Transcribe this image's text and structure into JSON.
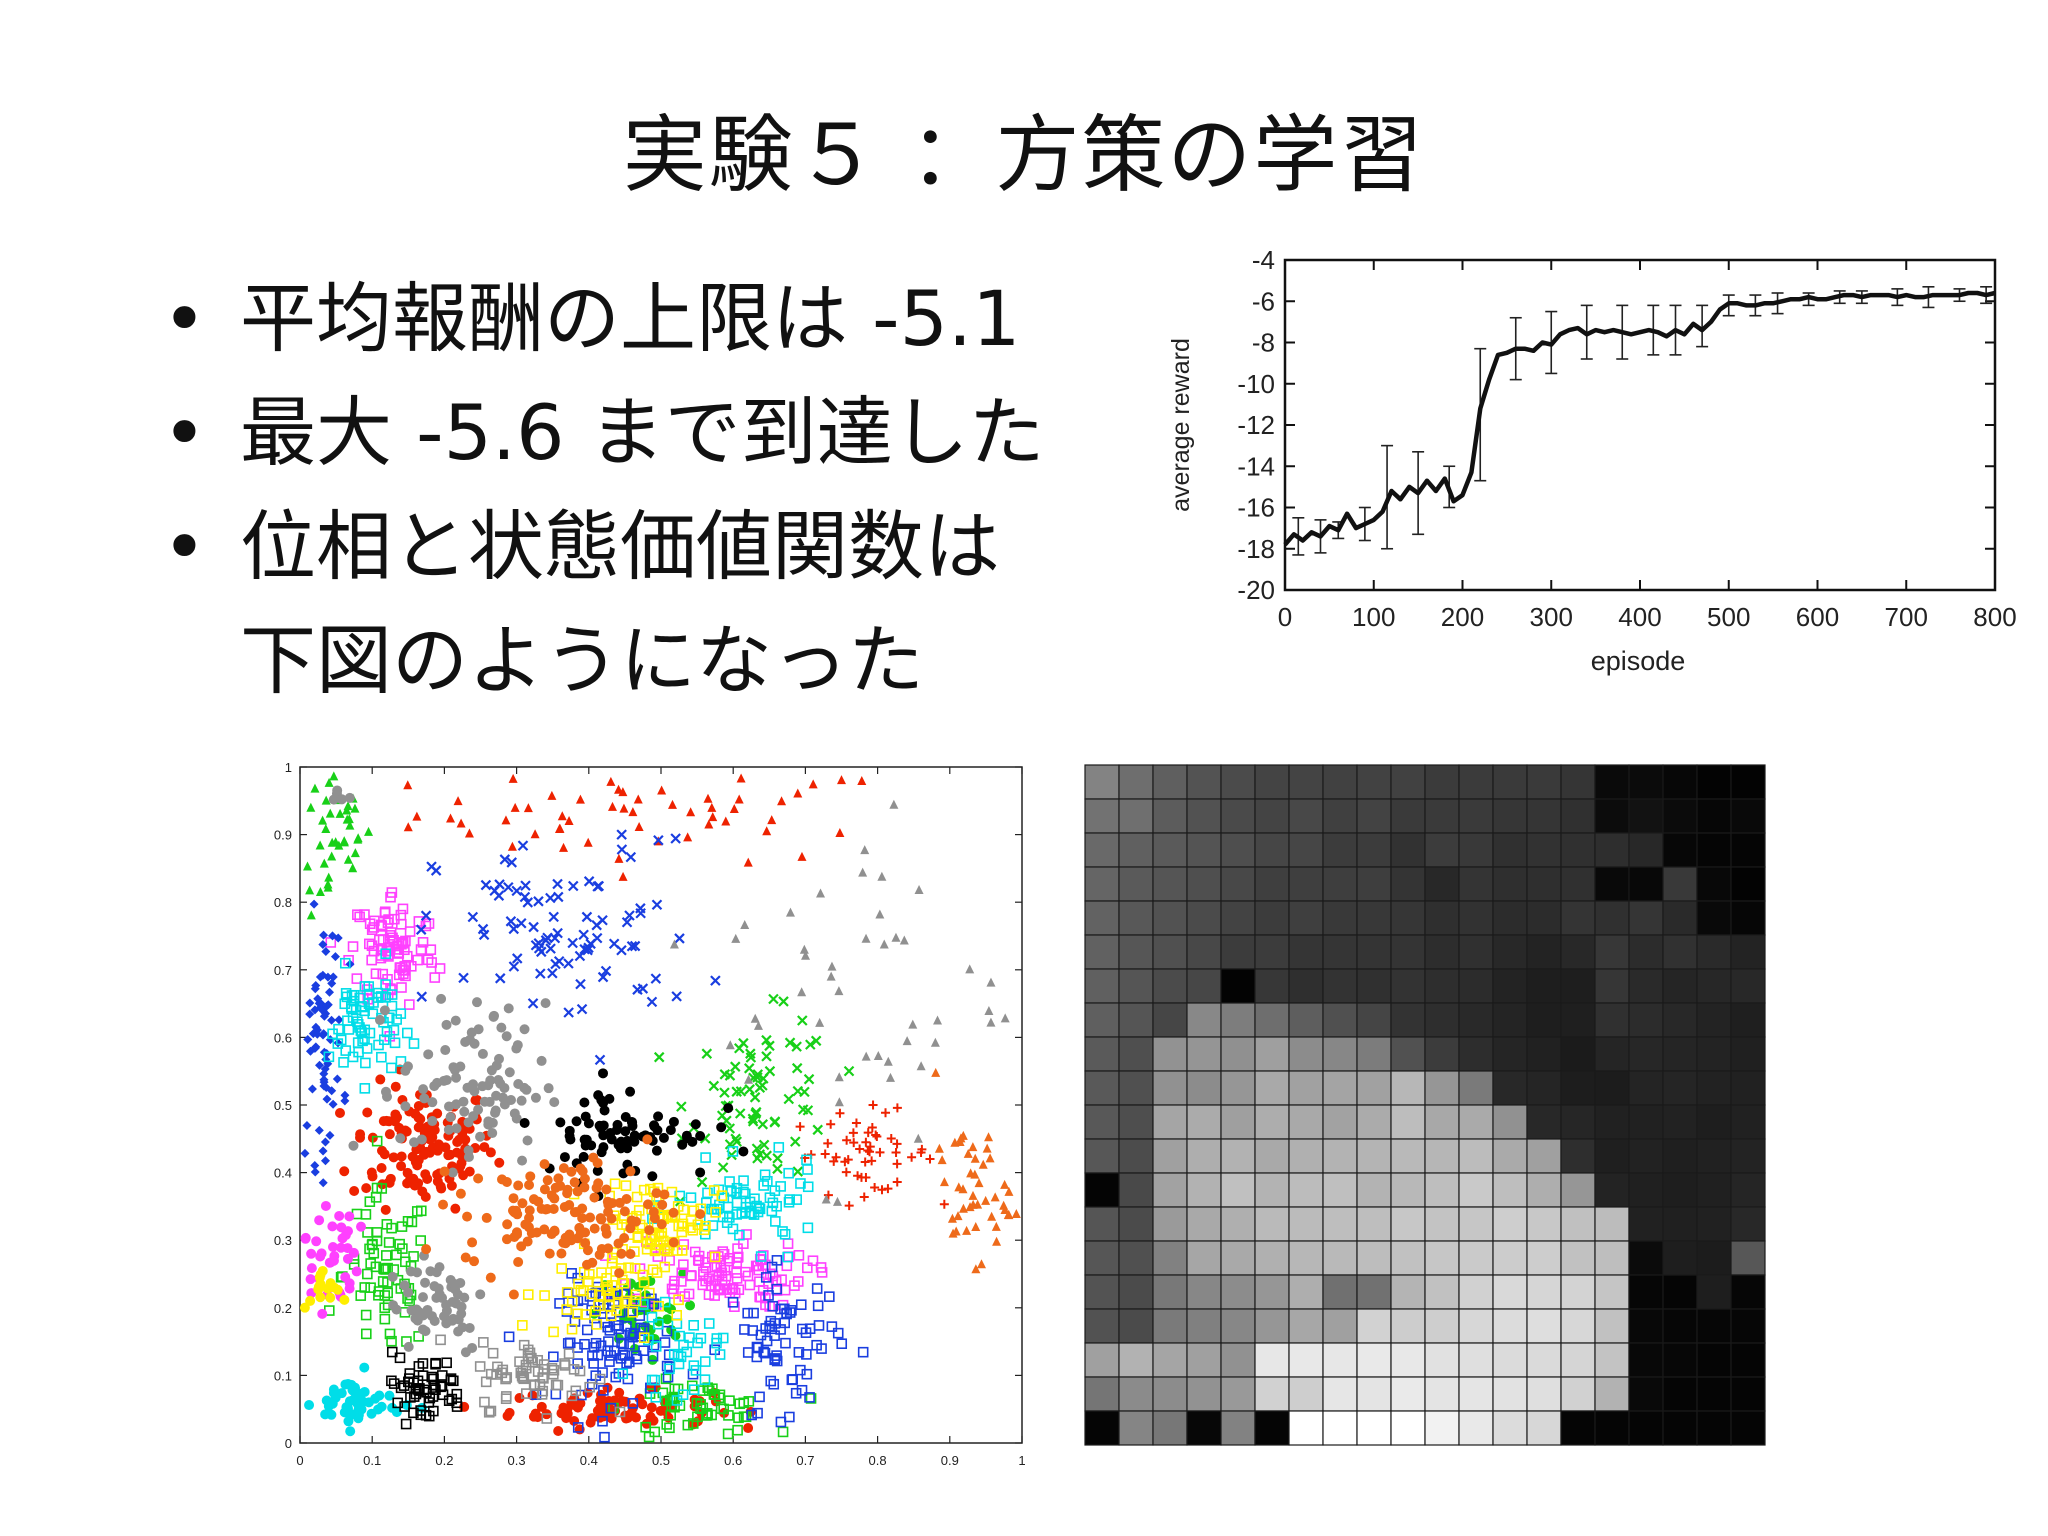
{
  "slide": {
    "title": "実験５ ：方策の学習",
    "bullets": [
      {
        "text": "平均報酬の上限は -5.1"
      },
      {
        "text": "最大 -5.6 まで到達した"
      },
      {
        "text": "位相と状態価値関数は",
        "cont": "下図のようになった"
      }
    ],
    "bullet_char": "•"
  },
  "chart_data": [
    {
      "type": "line",
      "xlabel": "episode",
      "ylabel": "average reward",
      "xlim": [
        0,
        800
      ],
      "ylim": [
        -20,
        -4
      ],
      "xticks": [
        "0",
        "100",
        "200",
        "300",
        "400",
        "500",
        "600",
        "700",
        "800"
      ],
      "yticks": [
        "-4",
        "-6",
        "-8",
        "-10",
        "-12",
        "-14",
        "-16",
        "-18",
        "-20"
      ],
      "line_color": "#111111",
      "series": [
        {
          "x": [
            0,
            10,
            20,
            30,
            40,
            50,
            60,
            70,
            80,
            90,
            100,
            110,
            120,
            130,
            140,
            150,
            160,
            170,
            180,
            190,
            200,
            210,
            220,
            230,
            240,
            250,
            260,
            270,
            280,
            290,
            300,
            310,
            320,
            330,
            340,
            350,
            360,
            370,
            380,
            390,
            400,
            410,
            420,
            430,
            440,
            450,
            460,
            470,
            480,
            490,
            500,
            510,
            520,
            530,
            540,
            550,
            560,
            570,
            580,
            590,
            600,
            610,
            620,
            630,
            640,
            650,
            660,
            670,
            680,
            690,
            700,
            710,
            720,
            730,
            740,
            750,
            760,
            770,
            780,
            790,
            800
          ],
          "y": [
            -17.8,
            -17.3,
            -17.6,
            -17.2,
            -17.4,
            -16.9,
            -17.1,
            -16.3,
            -17.0,
            -16.8,
            -16.6,
            -16.2,
            -15.2,
            -15.6,
            -15.0,
            -15.3,
            -14.7,
            -15.2,
            -14.6,
            -15.7,
            -15.4,
            -14.3,
            -11.2,
            -9.8,
            -8.6,
            -8.5,
            -8.3,
            -8.3,
            -8.4,
            -8.0,
            -8.1,
            -7.6,
            -7.4,
            -7.3,
            -7.6,
            -7.4,
            -7.5,
            -7.4,
            -7.5,
            -7.6,
            -7.5,
            -7.4,
            -7.5,
            -7.7,
            -7.4,
            -7.6,
            -7.1,
            -7.4,
            -7.0,
            -6.4,
            -6.1,
            -6.1,
            -6.2,
            -6.2,
            -6.1,
            -6.1,
            -6.0,
            -5.9,
            -5.9,
            -5.8,
            -5.9,
            -5.9,
            -5.8,
            -5.7,
            -5.7,
            -5.8,
            -5.7,
            -5.7,
            -5.7,
            -5.8,
            -5.7,
            -5.8,
            -5.8,
            -5.7,
            -5.7,
            -5.7,
            -5.7,
            -5.6,
            -5.6,
            -5.7,
            -5.6
          ],
          "error_bars": [
            {
              "x": 15,
              "y": -17.4,
              "err": 0.9
            },
            {
              "x": 40,
              "y": -17.4,
              "err": 0.8
            },
            {
              "x": 60,
              "y": -17.1,
              "err": 0.4
            },
            {
              "x": 90,
              "y": -16.8,
              "err": 0.8
            },
            {
              "x": 115,
              "y": -15.5,
              "err": 2.5
            },
            {
              "x": 150,
              "y": -15.3,
              "err": 2.0
            },
            {
              "x": 185,
              "y": -15.0,
              "err": 1.0
            },
            {
              "x": 220,
              "y": -11.5,
              "err": 3.2
            },
            {
              "x": 260,
              "y": -8.3,
              "err": 1.5
            },
            {
              "x": 300,
              "y": -8.0,
              "err": 1.5
            },
            {
              "x": 340,
              "y": -7.5,
              "err": 1.3
            },
            {
              "x": 380,
              "y": -7.5,
              "err": 1.3
            },
            {
              "x": 415,
              "y": -7.4,
              "err": 1.2
            },
            {
              "x": 440,
              "y": -7.4,
              "err": 1.2
            },
            {
              "x": 470,
              "y": -7.2,
              "err": 1.0
            },
            {
              "x": 500,
              "y": -6.2,
              "err": 0.5
            },
            {
              "x": 530,
              "y": -6.2,
              "err": 0.5
            },
            {
              "x": 555,
              "y": -6.1,
              "err": 0.5
            },
            {
              "x": 590,
              "y": -5.9,
              "err": 0.3
            },
            {
              "x": 625,
              "y": -5.8,
              "err": 0.3
            },
            {
              "x": 650,
              "y": -5.8,
              "err": 0.3
            },
            {
              "x": 690,
              "y": -5.8,
              "err": 0.4
            },
            {
              "x": 725,
              "y": -5.8,
              "err": 0.5
            },
            {
              "x": 760,
              "y": -5.7,
              "err": 0.3
            },
            {
              "x": 790,
              "y": -5.7,
              "err": 0.4
            }
          ]
        }
      ]
    },
    {
      "type": "scatter",
      "xlim": [
        0,
        1
      ],
      "ylim": [
        0,
        1
      ],
      "xticks": [
        "0",
        "0.1",
        "0.2",
        "0.3",
        "0.4",
        "0.5",
        "0.6",
        "0.7",
        "0.8",
        "0.9",
        "1"
      ],
      "yticks": [
        "0",
        "0.1",
        "0.2",
        "0.3",
        "0.4",
        "0.5",
        "0.6",
        "0.7",
        "0.8",
        "0.9",
        "1"
      ],
      "clusters": [
        {
          "color": "#ee2200",
          "shape": "tri",
          "cx": 0.5,
          "cy": 0.93,
          "sx": 0.17,
          "sy": 0.035,
          "n": 55
        },
        {
          "color": "#ee2200",
          "shape": "circle",
          "cx": 0.17,
          "cy": 0.44,
          "sx": 0.05,
          "sy": 0.045,
          "n": 130
        },
        {
          "color": "#ee2200",
          "shape": "circle",
          "cx": 0.43,
          "cy": 0.05,
          "sx": 0.07,
          "sy": 0.014,
          "n": 80
        },
        {
          "color": "#ee2200",
          "shape": "plus",
          "cx": 0.78,
          "cy": 0.43,
          "sx": 0.05,
          "sy": 0.03,
          "n": 50
        },
        {
          "color": "#18d018",
          "shape": "tri",
          "cx": 0.05,
          "cy": 0.89,
          "sx": 0.025,
          "sy": 0.06,
          "n": 40
        },
        {
          "color": "#18d018",
          "shape": "square",
          "cx": 0.12,
          "cy": 0.25,
          "sx": 0.03,
          "sy": 0.06,
          "n": 70
        },
        {
          "color": "#18d018",
          "shape": "x",
          "cx": 0.64,
          "cy": 0.51,
          "sx": 0.05,
          "sy": 0.06,
          "n": 75
        },
        {
          "color": "#18d018",
          "shape": "square",
          "cx": 0.55,
          "cy": 0.05,
          "sx": 0.05,
          "sy": 0.02,
          "n": 55
        },
        {
          "color": "#18d018",
          "shape": "circle",
          "cx": 0.47,
          "cy": 0.19,
          "sx": 0.03,
          "sy": 0.03,
          "n": 40
        },
        {
          "color": "#ff40ff",
          "shape": "square",
          "cx": 0.13,
          "cy": 0.73,
          "sx": 0.03,
          "sy": 0.045,
          "n": 90
        },
        {
          "color": "#ff40ff",
          "shape": "square",
          "cx": 0.58,
          "cy": 0.25,
          "sx": 0.06,
          "sy": 0.025,
          "n": 110
        },
        {
          "color": "#ff40ff",
          "shape": "circle",
          "cx": 0.04,
          "cy": 0.28,
          "sx": 0.02,
          "sy": 0.04,
          "n": 40
        },
        {
          "color": "#1a3ee0",
          "shape": "x",
          "cx": 0.37,
          "cy": 0.75,
          "sx": 0.09,
          "sy": 0.07,
          "n": 90
        },
        {
          "color": "#1a3ee0",
          "shape": "diamond",
          "cx": 0.03,
          "cy": 0.6,
          "sx": 0.015,
          "sy": 0.09,
          "n": 75
        },
        {
          "color": "#1a3ee0",
          "shape": "square",
          "cx": 0.44,
          "cy": 0.15,
          "sx": 0.04,
          "sy": 0.045,
          "n": 100
        },
        {
          "color": "#1a3ee0",
          "shape": "square",
          "cx": 0.67,
          "cy": 0.15,
          "sx": 0.04,
          "sy": 0.05,
          "n": 70
        },
        {
          "color": "#00dde8",
          "shape": "square",
          "cx": 0.09,
          "cy": 0.62,
          "sx": 0.025,
          "sy": 0.04,
          "n": 70
        },
        {
          "color": "#00dde8",
          "shape": "square",
          "cx": 0.62,
          "cy": 0.35,
          "sx": 0.05,
          "sy": 0.03,
          "n": 70
        },
        {
          "color": "#00dde8",
          "shape": "circle",
          "cx": 0.08,
          "cy": 0.06,
          "sx": 0.03,
          "sy": 0.02,
          "n": 50
        },
        {
          "color": "#00dde8",
          "shape": "square",
          "cx": 0.52,
          "cy": 0.13,
          "sx": 0.03,
          "sy": 0.03,
          "n": 35
        },
        {
          "color": "#ffee00",
          "shape": "square",
          "cx": 0.5,
          "cy": 0.33,
          "sx": 0.04,
          "sy": 0.03,
          "n": 80
        },
        {
          "color": "#ffee00",
          "shape": "square",
          "cx": 0.41,
          "cy": 0.22,
          "sx": 0.04,
          "sy": 0.03,
          "n": 60
        },
        {
          "color": "#ffee00",
          "shape": "circle",
          "cx": 0.03,
          "cy": 0.22,
          "sx": 0.012,
          "sy": 0.02,
          "n": 15
        },
        {
          "color": "#909090",
          "shape": "circle",
          "cx": 0.24,
          "cy": 0.53,
          "sx": 0.05,
          "sy": 0.06,
          "n": 95
        },
        {
          "color": "#909090",
          "shape": "tri",
          "cx": 0.78,
          "cy": 0.67,
          "sx": 0.1,
          "sy": 0.13,
          "n": 45
        },
        {
          "color": "#909090",
          "shape": "circle",
          "cx": 0.19,
          "cy": 0.21,
          "sx": 0.035,
          "sy": 0.04,
          "n": 55
        },
        {
          "color": "#909090",
          "shape": "square",
          "cx": 0.33,
          "cy": 0.1,
          "sx": 0.04,
          "sy": 0.025,
          "n": 60
        },
        {
          "color": "#909090",
          "shape": "circle",
          "cx": 0.06,
          "cy": 0.96,
          "sx": 0.01,
          "sy": 0.005,
          "n": 5
        },
        {
          "color": "#000000",
          "shape": "circle",
          "cx": 0.45,
          "cy": 0.46,
          "sx": 0.06,
          "sy": 0.035,
          "n": 75
        },
        {
          "color": "#000000",
          "shape": "square",
          "cx": 0.17,
          "cy": 0.08,
          "sx": 0.03,
          "sy": 0.025,
          "n": 55
        },
        {
          "color": "#ee6a1a",
          "shape": "circle",
          "cx": 0.37,
          "cy": 0.34,
          "sx": 0.07,
          "sy": 0.04,
          "n": 130
        },
        {
          "color": "#ee6a1a",
          "shape": "tri",
          "cx": 0.93,
          "cy": 0.37,
          "sx": 0.025,
          "sy": 0.05,
          "n": 45
        }
      ]
    },
    {
      "type": "heatmap",
      "rows": 20,
      "cols": 20,
      "grayscale": true,
      "values": [
        [
          131,
          110,
          95,
          83,
          75,
          68,
          68,
          65,
          66,
          65,
          59,
          59,
          58,
          58,
          53,
          10,
          11,
          7,
          3,
          3
        ],
        [
          114,
          111,
          92,
          82,
          74,
          68,
          72,
          64,
          67,
          58,
          58,
          58,
          54,
          53,
          48,
          12,
          18,
          11,
          6,
          9
        ],
        [
          105,
          96,
          90,
          84,
          78,
          70,
          70,
          60,
          60,
          50,
          60,
          57,
          48,
          50,
          48,
          46,
          40,
          7,
          5,
          5
        ],
        [
          101,
          90,
          85,
          79,
          72,
          63,
          63,
          62,
          62,
          52,
          40,
          52,
          47,
          47,
          48,
          9,
          8,
          57,
          8,
          3
        ],
        [
          98,
          88,
          82,
          75,
          67,
          60,
          63,
          57,
          56,
          54,
          47,
          50,
          44,
          44,
          52,
          48,
          53,
          42,
          9,
          6
        ],
        [
          97,
          86,
          80,
          72,
          60,
          60,
          53,
          53,
          52,
          52,
          45,
          48,
          40,
          35,
          40,
          55,
          44,
          49,
          42,
          35
        ],
        [
          96,
          85,
          75,
          71,
          3,
          55,
          47,
          51,
          48,
          51,
          46,
          44,
          35,
          30,
          30,
          54,
          42,
          37,
          39,
          40
        ],
        [
          95,
          85,
          70,
          136,
          125,
          110,
          94,
          80,
          69,
          51,
          46,
          41,
          36,
          30,
          31,
          48,
          44,
          40,
          35,
          31
        ],
        [
          90,
          79,
          146,
          149,
          144,
          159,
          140,
          135,
          124,
          81,
          60,
          45,
          37,
          33,
          27,
          37,
          39,
          37,
          35,
          32
        ],
        [
          89,
          80,
          145,
          140,
          150,
          169,
          161,
          164,
          161,
          183,
          150,
          122,
          40,
          37,
          29,
          28,
          36,
          37,
          34,
          33
        ],
        [
          88,
          78,
          165,
          171,
          159,
          173,
          169,
          162,
          171,
          189,
          168,
          170,
          145,
          40,
          38,
          33,
          33,
          34,
          30,
          33
        ],
        [
          87,
          76,
          160,
          174,
          178,
          169,
          176,
          179,
          180,
          185,
          182,
          188,
          170,
          160,
          46,
          31,
          34,
          31,
          33,
          35
        ],
        [
          4,
          73,
          162,
          178,
          192,
          179,
          188,
          191,
          179,
          184,
          190,
          201,
          190,
          174,
          150,
          35,
          32,
          30,
          32,
          37
        ],
        [
          85,
          75,
          154,
          169,
          175,
          186,
          187,
          190,
          190,
          199,
          195,
          198,
          206,
          200,
          192,
          188,
          33,
          32,
          33,
          40
        ],
        [
          86,
          80,
          129,
          166,
          169,
          176,
          183,
          185,
          189,
          193,
          198,
          202,
          204,
          205,
          193,
          190,
          11,
          30,
          28,
          87
        ],
        [
          83,
          75,
          120,
          135,
          140,
          150,
          174,
          112,
          113,
          180,
          193,
          209,
          217,
          214,
          211,
          197,
          6,
          5,
          30,
          6
        ],
        [
          82,
          75,
          122,
          128,
          135,
          150,
          167,
          160,
          210,
          205,
          206,
          215,
          220,
          222,
          215,
          193,
          8,
          6,
          6,
          6
        ],
        [
          160,
          178,
          165,
          160,
          145,
          231,
          232,
          231,
          233,
          232,
          225,
          223,
          219,
          218,
          213,
          195,
          8,
          7,
          5,
          5
        ],
        [
          117,
          139,
          140,
          146,
          153,
          209,
          206,
          230,
          228,
          234,
          228,
          229,
          226,
          223,
          209,
          178,
          9,
          5,
          5,
          5
        ],
        [
          5,
          133,
          119,
          7,
          130,
          5,
          255,
          255,
          255,
          255,
          242,
          233,
          220,
          215,
          5,
          5,
          5,
          5,
          5,
          5
        ]
      ]
    }
  ]
}
